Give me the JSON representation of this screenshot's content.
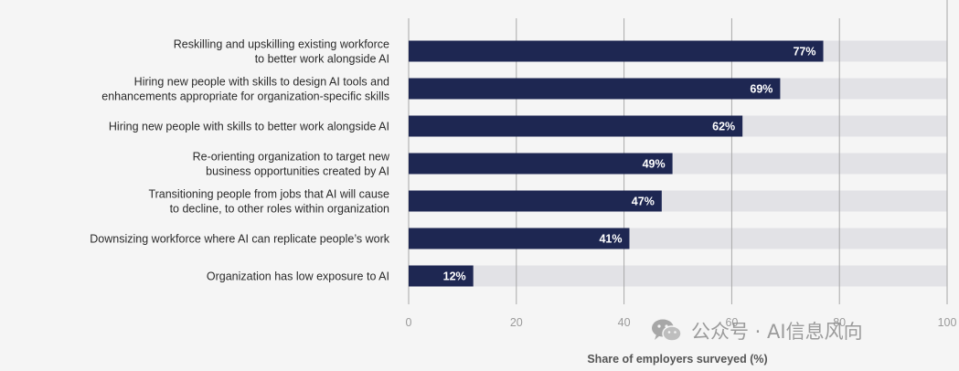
{
  "chart_data": {
    "type": "bar",
    "orientation": "horizontal",
    "categories": [
      [
        "Reskilling and upskilling existing workforce",
        "to better work alongside AI"
      ],
      [
        "Hiring new people with skills to design AI tools and",
        "enhancements appropriate for organization-specific skills"
      ],
      [
        "Hiring new people with skills to better work alongside AI"
      ],
      [
        "Re-orienting organization to target new",
        "business opportunities created by AI"
      ],
      [
        "Transitioning people from jobs that AI will cause",
        "to decline, to other roles within organization"
      ],
      [
        "Downsizing workforce where AI can replicate people’s work"
      ],
      [
        "Organization has low exposure to AI"
      ]
    ],
    "values": [
      77,
      69,
      62,
      49,
      47,
      41,
      12
    ],
    "value_labels": [
      "77%",
      "69%",
      "62%",
      "49%",
      "47%",
      "41%",
      "12%"
    ],
    "xlim": [
      0,
      100
    ],
    "xticks": [
      0,
      20,
      40,
      60,
      80,
      100
    ],
    "xlabel": "Share of employers surveyed (%)",
    "grid": true,
    "colors": {
      "bar": "#1e2752",
      "track": "#e2e2e6",
      "grid": "#a8a8a8",
      "background": "#f5f5f5"
    }
  },
  "watermark": {
    "text": "公众号 · AI信息风向",
    "icon": "wechat-icon"
  }
}
